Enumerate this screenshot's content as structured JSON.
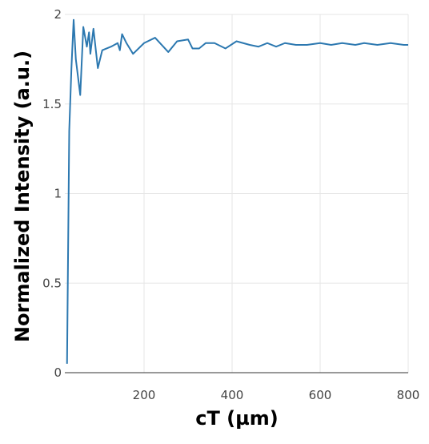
{
  "chart_data": {
    "type": "line",
    "x_label": "cT (µm)",
    "y_label": "Normalized Intensity (a.u.)",
    "x": [
      25,
      30,
      35,
      40,
      45,
      55,
      62,
      70,
      75,
      78,
      85,
      95,
      105,
      125,
      140,
      145,
      150,
      160,
      175,
      200,
      225,
      255,
      275,
      300,
      310,
      325,
      340,
      360,
      385,
      410,
      440,
      460,
      480,
      500,
      520,
      545,
      570,
      600,
      625,
      650,
      680,
      700,
      730,
      760,
      790,
      800
    ],
    "series": [
      {
        "color": "#2c78b0",
        "values": [
          0.05,
          1.35,
          1.7,
          1.97,
          1.75,
          1.55,
          1.93,
          1.82,
          1.9,
          1.78,
          1.92,
          1.7,
          1.8,
          1.82,
          1.84,
          1.8,
          1.89,
          1.84,
          1.78,
          1.84,
          1.87,
          1.79,
          1.85,
          1.86,
          1.81,
          1.81,
          1.84,
          1.84,
          1.81,
          1.85,
          1.83,
          1.82,
          1.84,
          1.82,
          1.84,
          1.83,
          1.83,
          1.84,
          1.83,
          1.84,
          1.83,
          1.84,
          1.83,
          1.84,
          1.83,
          1.83
        ]
      }
    ],
    "xlim": [
      20,
      800
    ],
    "ylim": [
      0,
      2
    ],
    "xticks": [
      200,
      400,
      600,
      800
    ],
    "yticks": [
      0,
      0.5,
      1,
      1.5,
      2
    ],
    "grid": true
  }
}
